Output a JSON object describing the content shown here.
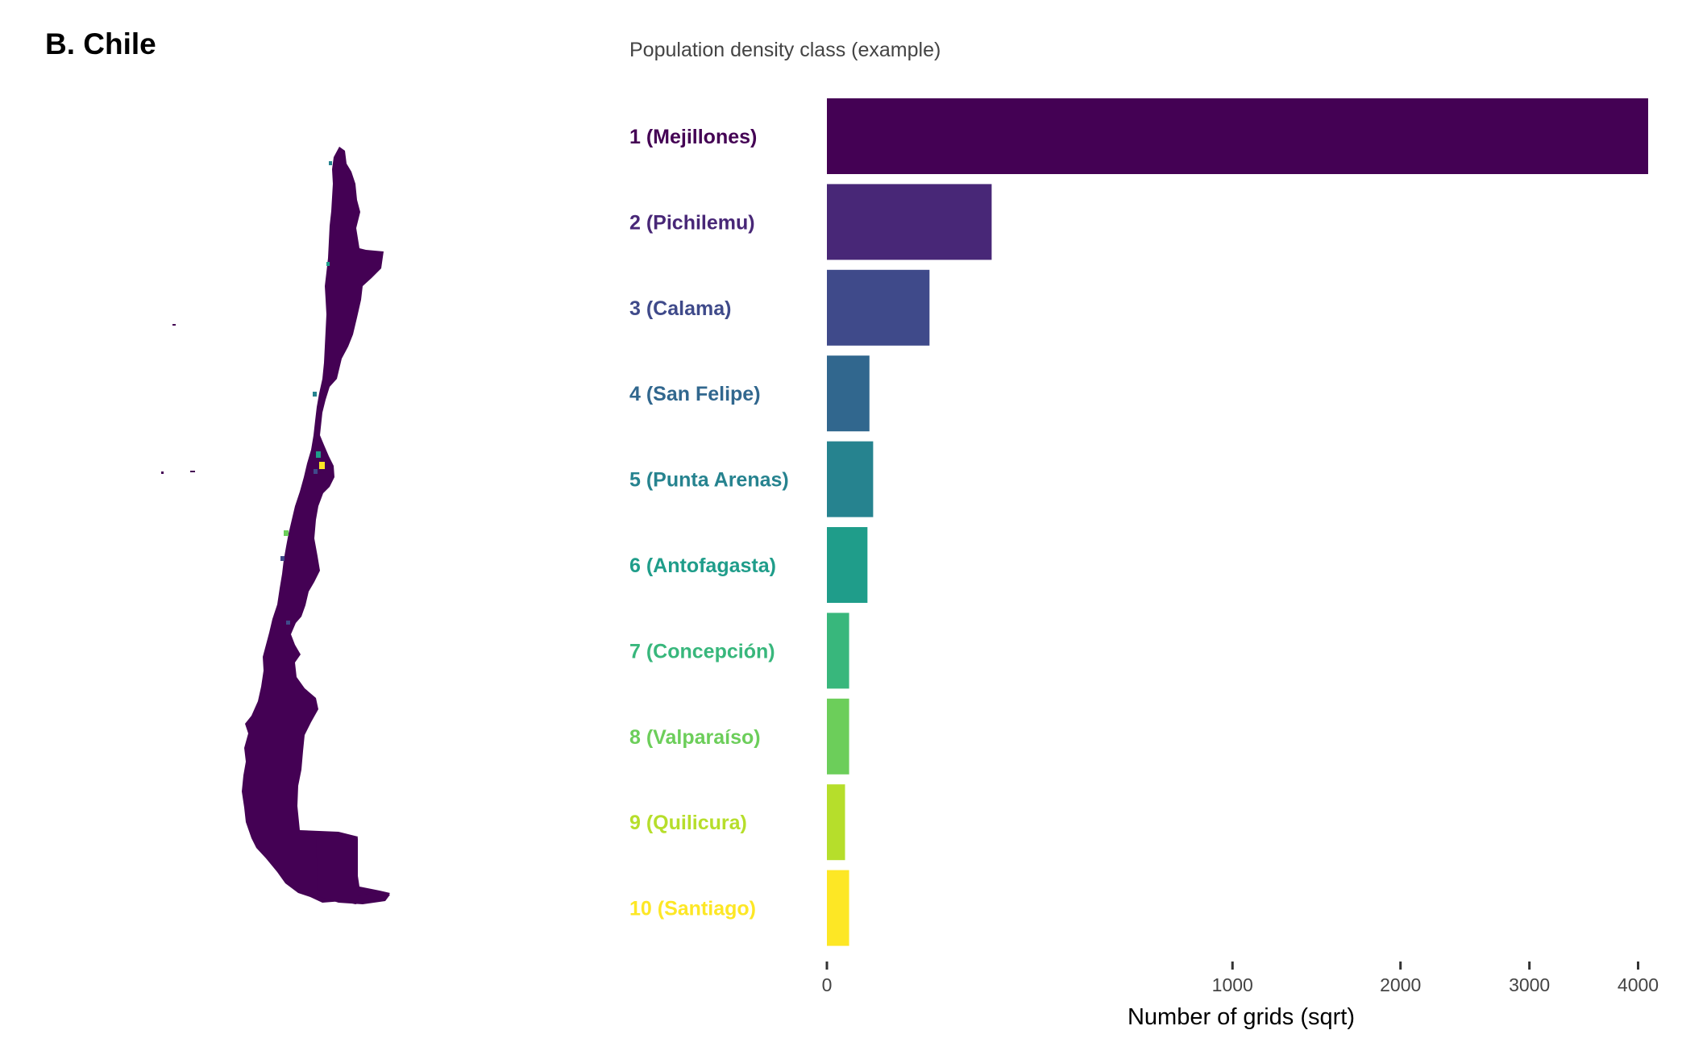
{
  "panel_title": "B. Chile",
  "chart_data": {
    "type": "bar",
    "orientation": "horizontal",
    "title": "Population density class (example)",
    "xlabel": "Number of grids (sqrt)",
    "ylabel": "",
    "x_scale": "sqrt",
    "xlim": [
      0,
      4100
    ],
    "x_ticks": [
      0,
      1000,
      2000,
      3000,
      4000
    ],
    "grid": false,
    "categories": [
      "1 (Mejillones)",
      "2 (Pichilemu)",
      "3 (Calama)",
      "4 (San Felipe)",
      "5 (Punta Arenas)",
      "6 (Antofagasta)",
      "7 (Concepción)",
      "8 (Valparaíso)",
      "9 (Quilicura)",
      "10 (Santiago)"
    ],
    "values": [
      4100,
      165,
      64,
      11,
      13,
      10,
      3,
      3,
      2,
      3
    ],
    "colors": [
      "#440154",
      "#482777",
      "#3F4A8A",
      "#31678E",
      "#26838F",
      "#1F9D8A",
      "#38B77C",
      "#6CCE5A",
      "#B6DE2B",
      "#FDE725"
    ]
  },
  "map": {
    "fill_color": "#440154",
    "highlight_colors": [
      "#FDE725",
      "#1F9D8A",
      "#3F4A8A",
      "#26838F",
      "#6CCE5A"
    ]
  }
}
